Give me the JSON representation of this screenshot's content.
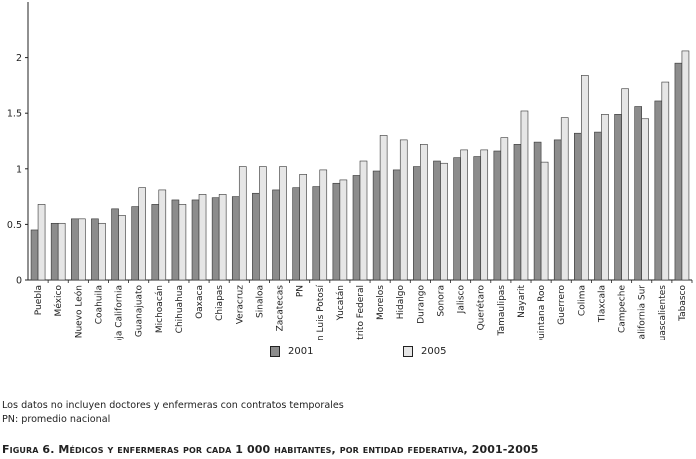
{
  "chart_data": {
    "type": "bar",
    "categories": [
      "Puebla",
      "México",
      "Nuevo León",
      "Coahuila",
      "Baja California",
      "Guanajuato",
      "Michoacán",
      "Chihuahua",
      "Oaxaca",
      "Chiapas",
      "Veracruz",
      "Sinaloa",
      "Zacatecas",
      "PN",
      "San Luis Potosí",
      "Yucatán",
      "Distrito Federal",
      "Morelos",
      "Hidalgo",
      "Durango",
      "Sonora",
      "Jalisco",
      "Querétaro",
      "Tamaulipas",
      "Nayarit",
      "Quintana Roo",
      "Guerrero",
      "Colima",
      "Tlaxcala",
      "Campeche",
      "Baja California Sur",
      "Aguascalientes",
      "Tabasco"
    ],
    "series": [
      {
        "name": "2001",
        "color": "#8c8c8c",
        "values": [
          0.45,
          0.51,
          0.55,
          0.55,
          0.64,
          0.66,
          0.68,
          0.72,
          0.72,
          0.74,
          0.75,
          0.78,
          0.81,
          0.83,
          0.84,
          0.87,
          0.94,
          0.98,
          0.99,
          1.02,
          1.07,
          1.1,
          1.11,
          1.16,
          1.22,
          1.24,
          1.26,
          1.32,
          1.33,
          1.49,
          1.56,
          1.61,
          1.95
        ]
      },
      {
        "name": "2005",
        "color": "#e6e6e6",
        "values": [
          0.68,
          0.51,
          0.55,
          0.51,
          0.58,
          0.83,
          0.81,
          0.68,
          0.77,
          0.77,
          1.02,
          1.02,
          1.02,
          0.95,
          0.99,
          0.9,
          1.07,
          1.3,
          1.26,
          1.22,
          1.05,
          1.17,
          1.17,
          1.28,
          1.52,
          1.06,
          1.46,
          1.84,
          1.49,
          1.72,
          1.45,
          1.78,
          2.06
        ]
      }
    ],
    "y_ticks": [
      "0",
      "0.5",
      "1",
      "1.5",
      "2"
    ],
    "ylim": [
      0,
      2.5
    ],
    "grid": false,
    "legend_position": "bottom"
  },
  "notes": {
    "line1": "Los datos no incluyen doctores y enfermeras con contratos temporales",
    "line2": "PN: promedio nacional"
  },
  "caption": "Figura 6. Médicos y enfermeras por cada 1 000 habitantes, por entidad federativa, 2001-2005"
}
